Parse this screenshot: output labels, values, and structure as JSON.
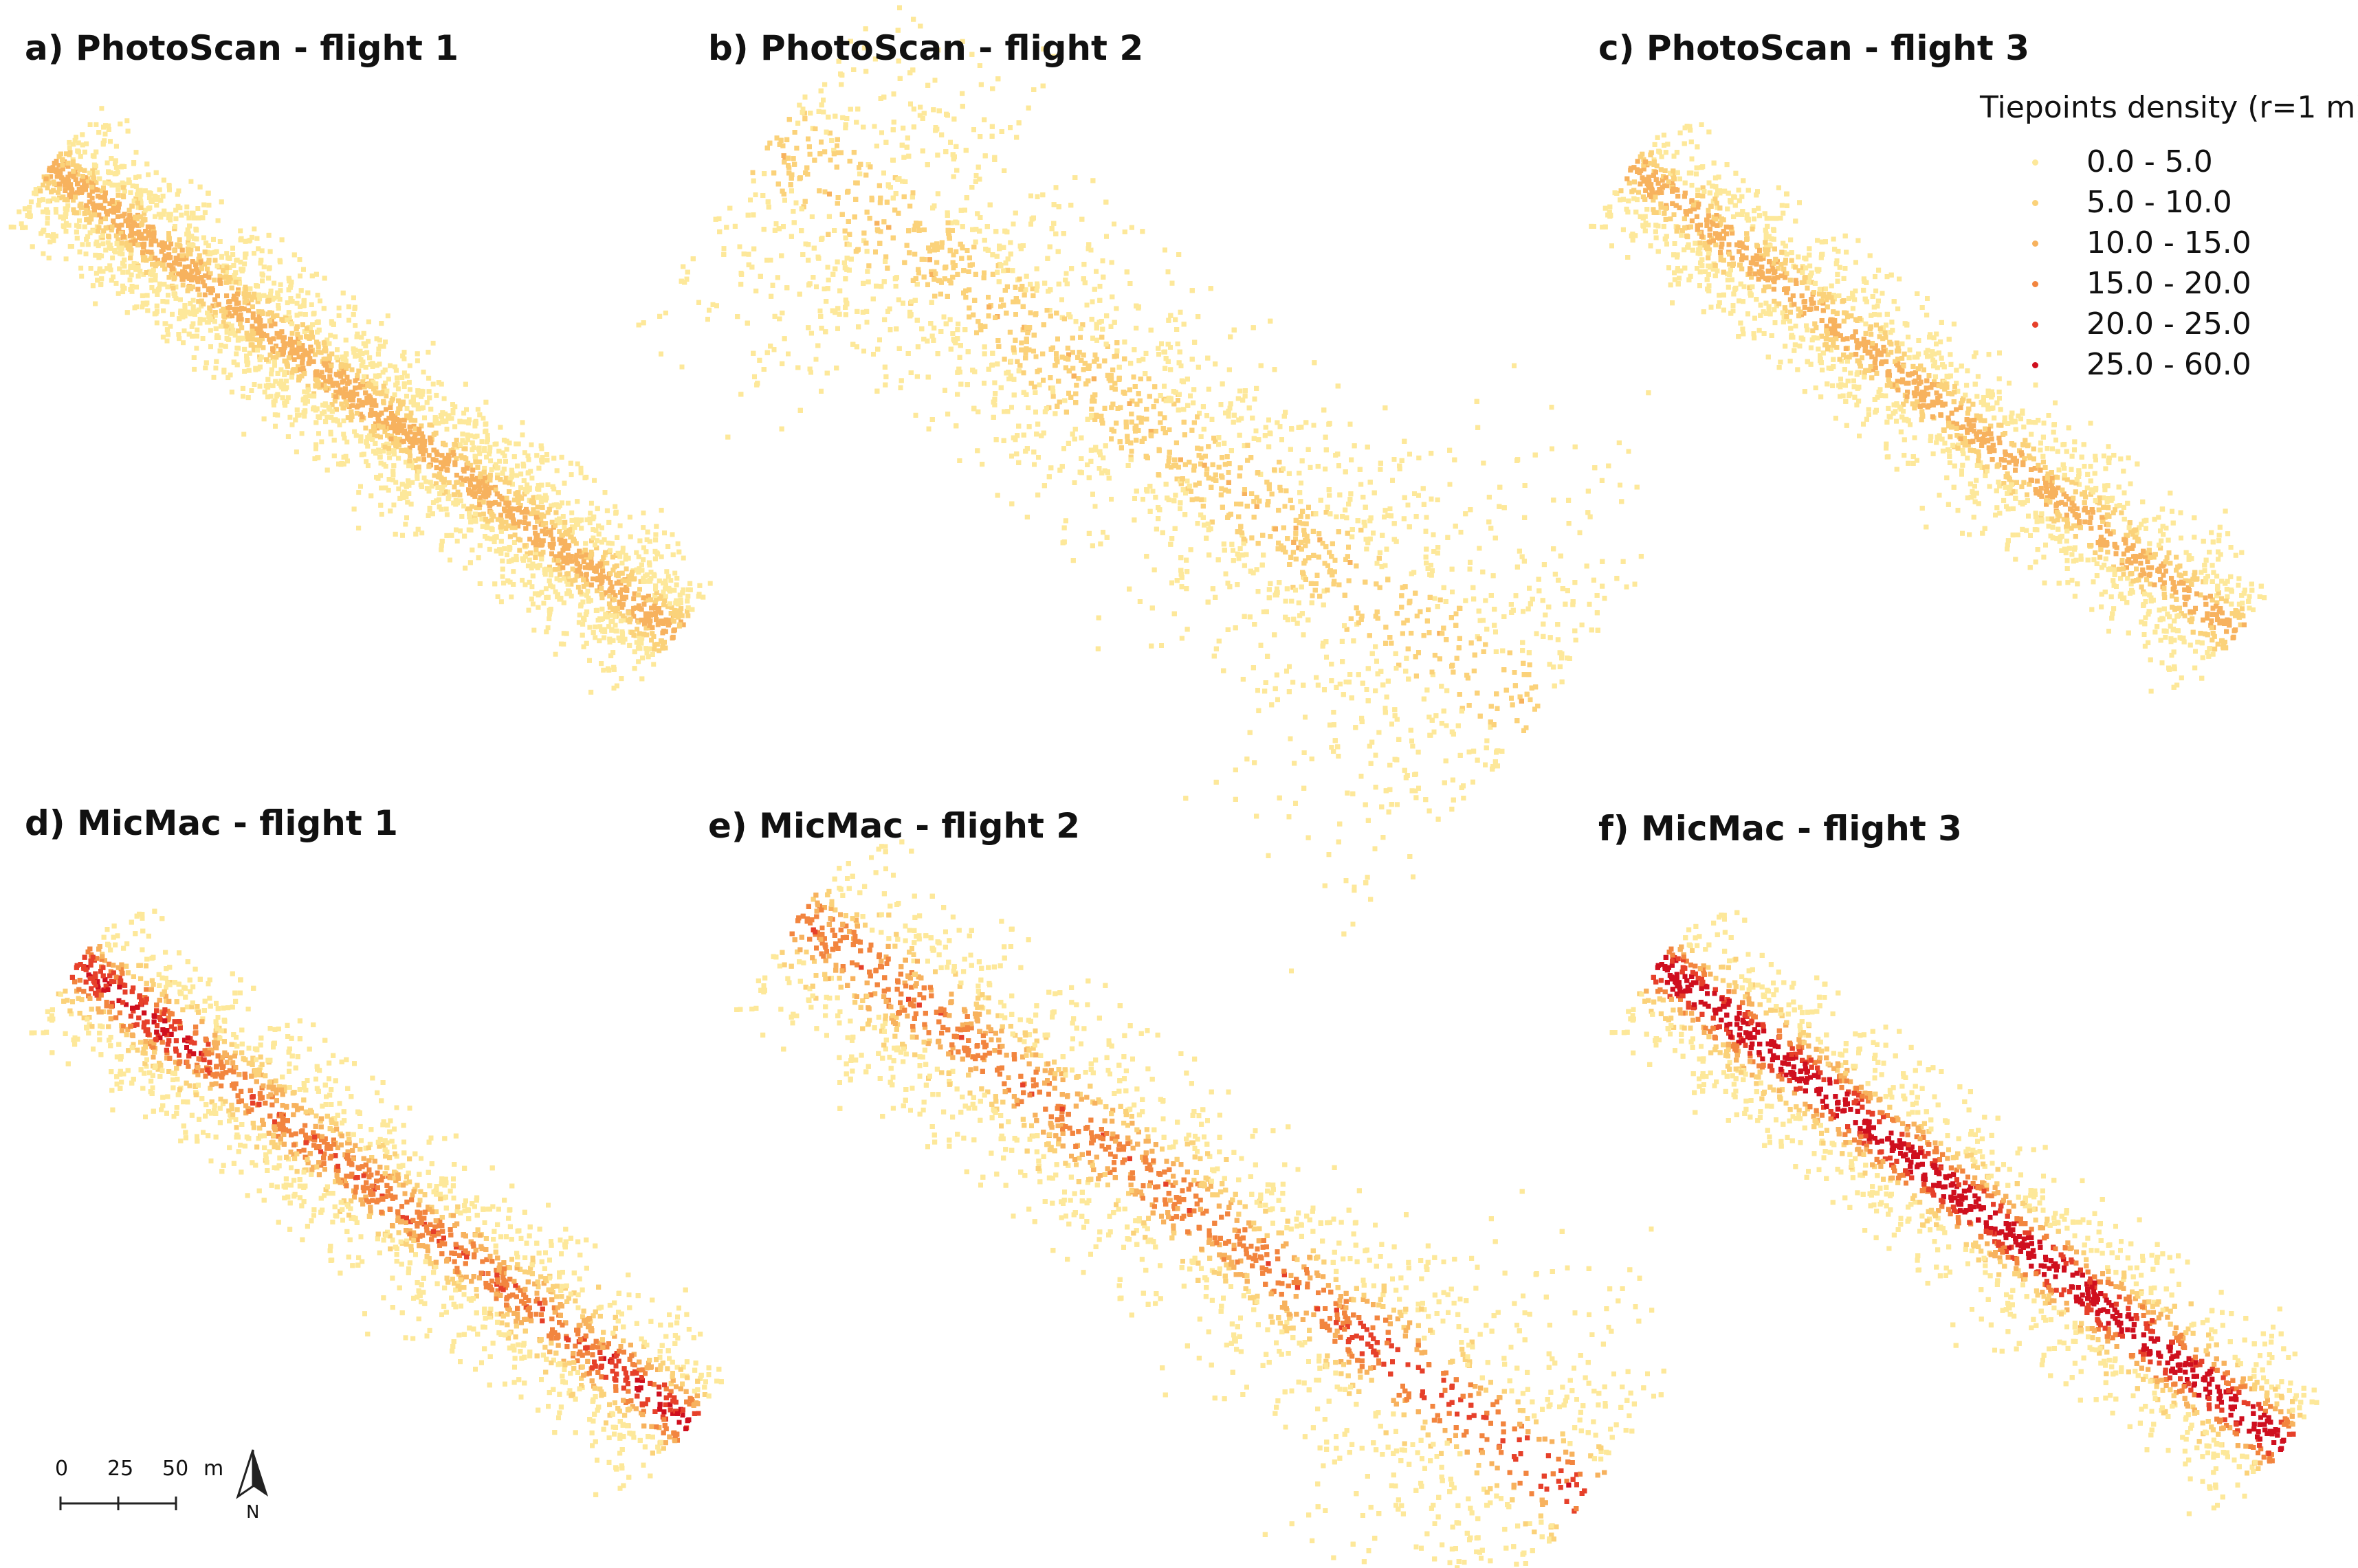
{
  "panels": [
    {
      "id": "a",
      "title": "a) PhotoScan - flight 1"
    },
    {
      "id": "b",
      "title": "b) PhotoScan - flight 2"
    },
    {
      "id": "c",
      "title": "c) PhotoScan - flight 3"
    },
    {
      "id": "d",
      "title": "d) MicMac  - flight 1"
    },
    {
      "id": "e",
      "title": "e) MicMac  - flight 2"
    },
    {
      "id": "f",
      "title": "f) MicMac  - flight 3"
    }
  ],
  "legend": {
    "title": "Tiepoints density (r=1 m)",
    "classes": [
      {
        "label": "0.0 - 5.0",
        "color": "#fde89a"
      },
      {
        "label": "5.0 - 10.0",
        "color": "#fbd27a"
      },
      {
        "label": "10.0 - 15.0",
        "color": "#f7b25e"
      },
      {
        "label": "15.0 - 20.0",
        "color": "#f2853f"
      },
      {
        "label": "20.0 - 25.0",
        "color": "#e6402a"
      },
      {
        "label": "25.0 - 60.0",
        "color": "#cf0f1e"
      }
    ]
  },
  "scalebar": {
    "ticks": [
      "0",
      "25",
      "50"
    ],
    "unit": "m"
  },
  "north_label": "N"
}
